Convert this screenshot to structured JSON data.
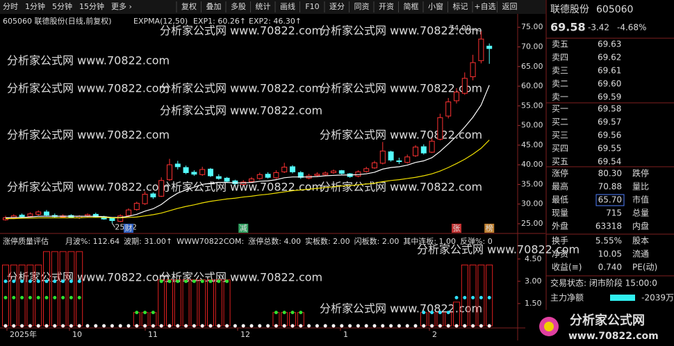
{
  "toolbar": {
    "periods": [
      "分时",
      "1分钟",
      "5分钟",
      "15分钟",
      "更多 ›"
    ],
    "buttons": [
      "复权",
      "叠加",
      "多股",
      "统计",
      "画线",
      "F10",
      "逐分",
      "同资",
      "开资",
      "简框",
      "小窗",
      "标记",
      "+自选",
      "返回"
    ]
  },
  "watermark": "分析家公式网 www.70822.com",
  "chart_data": {
    "type": "candlestick",
    "title": "605060 联德股份(日线,前复权)",
    "indicator": "EXPMA(12,50)",
    "exp1_label": "EXP1: 60.26↑",
    "exp2_label": "EXP2: 46.30↑",
    "open": [
      26,
      26.5,
      27.2,
      26.9,
      27.4,
      28,
      27.1,
      26.7,
      27.1,
      26.5,
      27,
      27.4,
      26.8,
      26.4,
      25.6,
      27.1,
      28.6,
      30.1,
      32.6,
      32,
      36.2,
      40.2,
      39.3,
      38.1,
      37.5,
      38.9,
      37,
      36.6,
      35.9,
      35,
      35.7,
      36.5,
      37.6,
      36.7,
      38.2,
      39.5,
      38,
      36.6,
      37.3,
      37.5,
      38,
      38.5,
      37.7,
      37.1,
      38.3,
      39.2,
      40.4,
      43.3,
      41,
      40.6,
      42.3,
      44.6,
      43.2,
      46.5,
      52.4,
      56.3,
      58.2,
      62.4,
      66.5,
      70.2
    ],
    "high": [
      27,
      27.4,
      27.6,
      27.9,
      28.4,
      28.5,
      27.6,
      27.4,
      27.4,
      27.2,
      27.6,
      27.8,
      27,
      26.6,
      27.4,
      28.9,
      30.6,
      33.2,
      33,
      36.8,
      41.5,
      41,
      39.8,
      38.6,
      39.5,
      39.2,
      37.6,
      36.9,
      36.2,
      36.1,
      36.9,
      38,
      38.1,
      38.6,
      40.5,
      39.9,
      38.4,
      37.7,
      38.1,
      38.3,
      38.8,
      38.7,
      37.9,
      38.6,
      39.5,
      41,
      45.8,
      43.6,
      41.8,
      42.6,
      45,
      45.2,
      46.8,
      53,
      57,
      59.5,
      63.5,
      68,
      74,
      70.88
    ],
    "low": [
      25.8,
      26.2,
      26.5,
      26.6,
      27.1,
      27,
      26.5,
      26.5,
      26.4,
      26.2,
      26.7,
      26.6,
      26,
      25.12,
      25.4,
      26.8,
      28.3,
      29.8,
      31.3,
      31.8,
      35.9,
      38.8,
      37.6,
      37.2,
      37.2,
      36.9,
      36.2,
      35.5,
      34.8,
      34.8,
      35.5,
      36.2,
      36.5,
      36.4,
      37.9,
      37.8,
      36.4,
      36.3,
      36.9,
      37.2,
      37.7,
      37.5,
      36.7,
      36.8,
      38,
      39,
      40.1,
      40.8,
      40.2,
      40.3,
      42,
      42.6,
      43,
      46.2,
      51.8,
      55.6,
      57.8,
      61.5,
      65.8,
      65.7
    ],
    "close": [
      26.5,
      27,
      26.8,
      27.5,
      28,
      27.2,
      26.8,
      27,
      26.6,
      26.9,
      27.3,
      26.8,
      26.2,
      25.8,
      27,
      28.5,
      30.2,
      32.5,
      31.8,
      36,
      40,
      39.5,
      38,
      37.6,
      38.8,
      37.2,
      36.5,
      35.8,
      35.2,
      35.6,
      36.4,
      37.5,
      36.8,
      38,
      39.4,
      38.2,
      36.8,
      37.2,
      37.6,
      37.9,
      38.4,
      37.8,
      37,
      38.2,
      39,
      40.5,
      43.5,
      41.2,
      40.8,
      42,
      44.5,
      43,
      46,
      52,
      56,
      58.5,
      62,
      66,
      72,
      69.58
    ],
    "exp1": [
      26.5,
      26.6,
      26.6,
      26.7,
      26.9,
      26.9,
      26.9,
      26.9,
      26.9,
      26.9,
      26.9,
      26.9,
      26.8,
      26.6,
      26.6,
      26.9,
      27.4,
      28.2,
      28.8,
      29.9,
      31.5,
      32.8,
      33.6,
      34.3,
      35,
      35.3,
      35.5,
      35.5,
      35.4,
      35.4,
      35.5,
      35.8,
      35.9,
      36.2,
      36.7,
      36.9,
      36.9,
      36.9,
      37,
      37.2,
      37.3,
      37.4,
      37.4,
      37.5,
      37.7,
      38.1,
      38.9,
      39.3,
      39.5,
      39.9,
      40.6,
      41,
      41.8,
      43.4,
      45.3,
      47.3,
      49.6,
      52.1,
      55.2,
      60.26
    ],
    "exp2": [
      26.3,
      26.3,
      26.4,
      26.4,
      26.5,
      26.5,
      26.5,
      26.5,
      26.5,
      26.5,
      26.6,
      26.6,
      26.6,
      26.5,
      26.5,
      26.6,
      26.7,
      27,
      27.3,
      27.7,
      28.3,
      28.9,
      29.4,
      29.8,
      30.3,
      30.7,
      31,
      31.3,
      31.5,
      31.8,
      32,
      32.3,
      32.5,
      32.8,
      33.1,
      33.4,
      33.6,
      33.8,
      34,
      34.2,
      34.4,
      34.6,
      34.7,
      34.9,
      35.1,
      35.3,
      35.7,
      36,
      36.2,
      36.5,
      36.8,
      37.2,
      37.7,
      38.4,
      39.3,
      40.3,
      41.4,
      42.7,
      44.2,
      46.3
    ],
    "ylim": [
      22.7,
      78.4
    ],
    "yticks": [
      {
        "value": 75,
        "label": "75.00"
      },
      {
        "value": 70,
        "label": "70.00"
      },
      {
        "value": 65,
        "label": "65.00"
      },
      {
        "value": 60,
        "label": "60.00"
      },
      {
        "value": 55,
        "label": "55.00"
      },
      {
        "value": 50,
        "label": "50.00"
      },
      {
        "value": 45,
        "label": "45.00"
      },
      {
        "value": 40,
        "label": "40.00"
      },
      {
        "value": 35,
        "label": "35.00"
      },
      {
        "value": 30,
        "label": "30.00"
      },
      {
        "value": 25,
        "label": "25.00"
      }
    ],
    "annotations": [
      {
        "value": 74,
        "label": "74.00"
      },
      {
        "value": 25.12,
        "label": "25.12"
      }
    ],
    "event_markers": [
      "财",
      "减",
      "张",
      "榜"
    ],
    "x_labels": [
      "2025年",
      "10",
      "11",
      "12",
      "1",
      "2"
    ]
  },
  "indicator_panel": {
    "type": "bar",
    "title": "涨停质量评估",
    "stats": [
      "月波%: 112.64",
      "波期: 31.00↑",
      "WWW70822COM:",
      "涨停总数: 4.00",
      "实板数: 2.00",
      "闪板数: 2.00",
      "其中连板: 1.00",
      "反弹%: 0"
    ],
    "values": [
      4.1,
      4.1,
      4.1,
      4.1,
      4.1,
      5,
      5,
      5,
      5,
      5,
      0,
      0,
      0,
      0,
      0,
      0,
      0.9,
      0.9,
      0.9,
      3.1,
      3.1,
      3.1,
      3.1,
      3.1,
      3.1,
      3.1,
      3.1,
      3.1,
      0,
      0,
      0,
      0,
      0,
      0.9,
      0.9,
      0.9,
      0.9,
      0,
      0,
      0,
      0,
      0,
      0,
      0,
      0,
      0,
      0,
      0,
      0,
      0,
      0,
      0.9,
      0.9,
      0.9,
      0.9,
      1.6,
      4.1,
      4.1,
      4.1,
      4.1
    ],
    "cyan": [
      3,
      3,
      3,
      3,
      3,
      3,
      3,
      3,
      3,
      3,
      null,
      null,
      null,
      null,
      null,
      null,
      null,
      null,
      null,
      null,
      null,
      null,
      null,
      null,
      null,
      null,
      null,
      null,
      null,
      null,
      null,
      null,
      null,
      null,
      null,
      null,
      null,
      null,
      null,
      null,
      null,
      null,
      null,
      null,
      null,
      null,
      null,
      null,
      null,
      null,
      null,
      0.9,
      0.9,
      0.9,
      0.9,
      1.9,
      1.9,
      1.9,
      1.9,
      1.9
    ],
    "green": [
      1.9,
      1.9,
      1.9,
      1.9,
      1.9,
      1.9,
      1.9,
      1.9,
      1.9,
      1.9,
      null,
      null,
      null,
      null,
      null,
      null,
      0.9,
      0.9,
      0.9,
      3,
      3,
      3,
      3,
      3,
      3,
      3,
      3,
      3,
      null,
      null,
      null,
      null,
      null,
      0.9,
      0.9,
      0.9,
      0.9,
      null,
      null,
      null,
      null,
      null,
      null,
      null,
      null,
      null,
      null,
      null,
      null,
      null,
      null,
      null,
      null,
      null,
      null,
      null,
      null,
      null,
      null,
      null
    ],
    "white": [
      0,
      0,
      0,
      0,
      0,
      0,
      0,
      0,
      0,
      0,
      0,
      0,
      0,
      0,
      0,
      0,
      0,
      0,
      0,
      0,
      0,
      0,
      0,
      0,
      0,
      0,
      0,
      0,
      0,
      0,
      0,
      0,
      0,
      0,
      0,
      0,
      0,
      0,
      0,
      0,
      0,
      0,
      0,
      0,
      0,
      0,
      0,
      0,
      0,
      0,
      0,
      0,
      0,
      0,
      0,
      0,
      0,
      0,
      0,
      0
    ],
    "ylim": [
      0,
      5.8
    ],
    "yticks": [
      {
        "value": 4.5,
        "label": "4.50"
      },
      {
        "value": 3,
        "label": "3.00"
      },
      {
        "value": 1.5,
        "label": "1.50"
      }
    ]
  },
  "quote": {
    "name": "联德股份",
    "code": "605060",
    "price": "69.58",
    "change": "-3.42",
    "pct": "-4.68%",
    "asks": [
      [
        "卖五",
        "69.63"
      ],
      [
        "卖四",
        "69.62"
      ],
      [
        "卖三",
        "69.61"
      ],
      [
        "卖二",
        "69.60"
      ],
      [
        "卖一",
        "69.59"
      ]
    ],
    "bids": [
      [
        "买一",
        "69.58"
      ],
      [
        "买二",
        "69.57"
      ],
      [
        "买三",
        "69.56"
      ],
      [
        "买四",
        "69.55"
      ],
      [
        "买五",
        "69.54"
      ]
    ],
    "stats": [
      [
        "涨停",
        "80.30",
        "跌停"
      ],
      [
        "最高",
        "70.88",
        "量比"
      ],
      [
        "最低",
        "65.70",
        "市值"
      ],
      [
        "现量",
        "715",
        "总量"
      ],
      [
        "外盘",
        "63318",
        "内盘"
      ],
      [
        "换手",
        "5.55%",
        "股本"
      ],
      [
        "净资",
        "10.05",
        "流通"
      ],
      [
        "收益(≡)",
        "0.740",
        "PE(动)"
      ]
    ],
    "status": "交易状态: 闭市阶段 15:00:0",
    "main_net": [
      "主力净额",
      "-2039万"
    ]
  },
  "logo": {
    "title": "分析家公式网",
    "url": "www.70822.com"
  }
}
